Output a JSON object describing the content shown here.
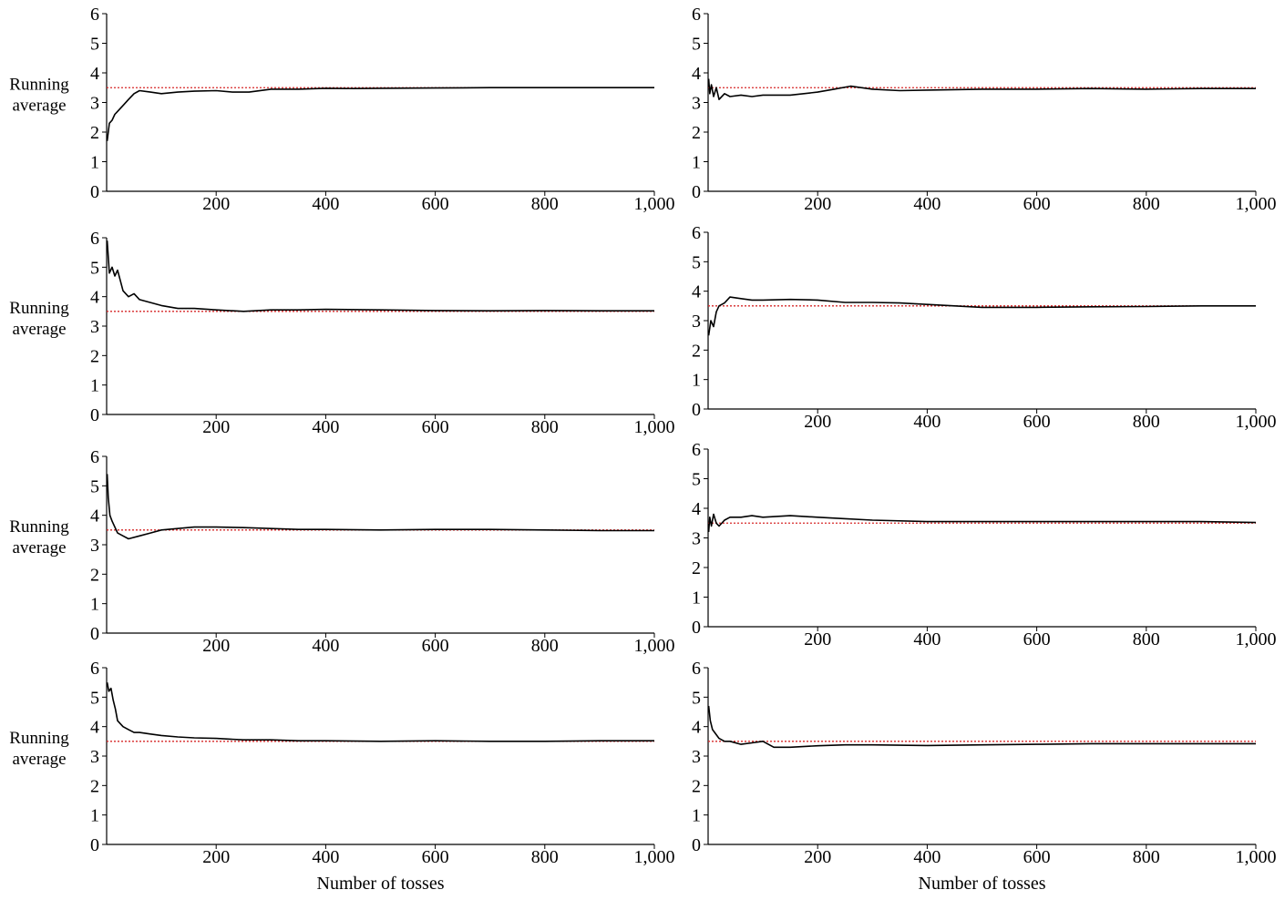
{
  "colors": {
    "series": "#000000",
    "reference": "#d62728",
    "axes": "#000000"
  },
  "chart_data": [
    {
      "type": "line",
      "ylabel": [
        "Running",
        "average"
      ],
      "xlabel": "",
      "xlim": [
        0,
        1000
      ],
      "ylim": [
        0,
        6
      ],
      "xticks": [
        "200",
        "400",
        "600",
        "800",
        "1,000"
      ],
      "xtick_values": [
        200,
        400,
        600,
        800,
        1000
      ],
      "yticks": [
        "0",
        "1",
        "2",
        "3",
        "4",
        "5",
        "6"
      ],
      "reference_line": 3.5,
      "reference_style": "dotted",
      "grid": false,
      "legend": "none",
      "series": [
        {
          "x": [
            1,
            5,
            10,
            15,
            20,
            30,
            40,
            50,
            60,
            80,
            100,
            130,
            160,
            200,
            230,
            260,
            300,
            350,
            400,
            450,
            500,
            600,
            700,
            800,
            900,
            1000
          ],
          "y": [
            1.7,
            2.3,
            2.4,
            2.6,
            2.7,
            2.9,
            3.1,
            3.3,
            3.4,
            3.35,
            3.3,
            3.35,
            3.38,
            3.4,
            3.35,
            3.35,
            3.45,
            3.45,
            3.48,
            3.47,
            3.48,
            3.49,
            3.5,
            3.5,
            3.5,
            3.5
          ]
        }
      ]
    },
    {
      "type": "line",
      "ylabel": [],
      "xlabel": "",
      "xlim": [
        0,
        1000
      ],
      "ylim": [
        0,
        6
      ],
      "xticks": [
        "200",
        "400",
        "600",
        "800",
        "1,000"
      ],
      "xtick_values": [
        200,
        400,
        600,
        800,
        1000
      ],
      "yticks": [
        "0",
        "1",
        "2",
        "3",
        "4",
        "5",
        "6"
      ],
      "reference_line": 3.5,
      "reference_style": "dotted",
      "grid": false,
      "legend": "none",
      "series": [
        {
          "x": [
            1,
            3,
            6,
            10,
            15,
            20,
            30,
            40,
            60,
            80,
            100,
            150,
            200,
            230,
            260,
            300,
            350,
            400,
            500,
            600,
            700,
            800,
            900,
            1000
          ],
          "y": [
            3.8,
            3.3,
            3.6,
            3.2,
            3.5,
            3.1,
            3.3,
            3.2,
            3.25,
            3.2,
            3.25,
            3.25,
            3.35,
            3.45,
            3.55,
            3.45,
            3.4,
            3.42,
            3.45,
            3.45,
            3.47,
            3.45,
            3.47,
            3.47
          ]
        }
      ]
    },
    {
      "type": "line",
      "ylabel": [
        "Running",
        "average"
      ],
      "xlabel": "",
      "xlim": [
        0,
        1000
      ],
      "ylim": [
        0,
        6
      ],
      "xticks": [
        "200",
        "400",
        "600",
        "800",
        "1,000"
      ],
      "xtick_values": [
        200,
        400,
        600,
        800,
        1000
      ],
      "yticks": [
        "0",
        "1",
        "2",
        "3",
        "4",
        "5",
        "6"
      ],
      "reference_line": 3.5,
      "reference_style": "dotted",
      "grid": false,
      "legend": "none",
      "series": [
        {
          "x": [
            1,
            5,
            10,
            15,
            20,
            30,
            40,
            50,
            60,
            80,
            100,
            130,
            160,
            200,
            250,
            300,
            350,
            400,
            500,
            600,
            700,
            800,
            900,
            1000
          ],
          "y": [
            5.9,
            4.8,
            5.0,
            4.7,
            4.9,
            4.2,
            4.0,
            4.1,
            3.9,
            3.8,
            3.7,
            3.6,
            3.6,
            3.55,
            3.5,
            3.55,
            3.55,
            3.57,
            3.55,
            3.53,
            3.52,
            3.53,
            3.52,
            3.52
          ]
        }
      ]
    },
    {
      "type": "line",
      "ylabel": [],
      "xlabel": "",
      "xlim": [
        0,
        1000
      ],
      "ylim": [
        0,
        6
      ],
      "xticks": [
        "200",
        "400",
        "600",
        "800",
        "1,000"
      ],
      "xtick_values": [
        200,
        400,
        600,
        800,
        1000
      ],
      "yticks": [
        "0",
        "1",
        "2",
        "3",
        "4",
        "5",
        "6"
      ],
      "reference_line": 3.5,
      "reference_style": "dotted",
      "grid": false,
      "legend": "none",
      "series": [
        {
          "x": [
            1,
            5,
            10,
            15,
            20,
            30,
            40,
            60,
            80,
            100,
            150,
            200,
            250,
            300,
            350,
            400,
            450,
            500,
            600,
            700,
            800,
            900,
            1000
          ],
          "y": [
            2.5,
            3.0,
            2.8,
            3.3,
            3.5,
            3.6,
            3.8,
            3.75,
            3.7,
            3.7,
            3.72,
            3.7,
            3.62,
            3.62,
            3.6,
            3.55,
            3.5,
            3.45,
            3.45,
            3.47,
            3.48,
            3.5,
            3.5
          ]
        }
      ]
    },
    {
      "type": "line",
      "ylabel": [
        "Running",
        "average"
      ],
      "xlabel": "",
      "xlim": [
        0,
        1000
      ],
      "ylim": [
        0,
        6
      ],
      "xticks": [
        "200",
        "400",
        "600",
        "800",
        "1,000"
      ],
      "xtick_values": [
        200,
        400,
        600,
        800,
        1000
      ],
      "yticks": [
        "0",
        "1",
        "2",
        "3",
        "4",
        "5",
        "6"
      ],
      "reference_line": 3.5,
      "reference_style": "dotted",
      "grid": false,
      "legend": "none",
      "series": [
        {
          "x": [
            1,
            3,
            6,
            10,
            15,
            20,
            30,
            40,
            60,
            80,
            100,
            130,
            160,
            200,
            250,
            300,
            350,
            400,
            500,
            600,
            700,
            800,
            900,
            1000
          ],
          "y": [
            5.4,
            4.6,
            4.0,
            3.8,
            3.6,
            3.4,
            3.3,
            3.2,
            3.3,
            3.4,
            3.5,
            3.55,
            3.6,
            3.6,
            3.58,
            3.55,
            3.52,
            3.52,
            3.5,
            3.52,
            3.52,
            3.5,
            3.48,
            3.48
          ]
        }
      ]
    },
    {
      "type": "line",
      "ylabel": [],
      "xlabel": "",
      "xlim": [
        0,
        1000
      ],
      "ylim": [
        0,
        6
      ],
      "xticks": [
        "200",
        "400",
        "600",
        "800",
        "1,000"
      ],
      "xtick_values": [
        200,
        400,
        600,
        800,
        1000
      ],
      "yticks": [
        "0",
        "1",
        "2",
        "3",
        "4",
        "5",
        "6"
      ],
      "reference_line": 3.5,
      "reference_style": "dotted",
      "grid": false,
      "legend": "none",
      "series": [
        {
          "x": [
            1,
            3,
            6,
            10,
            15,
            20,
            30,
            40,
            60,
            80,
            100,
            150,
            200,
            250,
            300,
            400,
            500,
            600,
            700,
            800,
            900,
            1000
          ],
          "y": [
            3.2,
            3.7,
            3.4,
            3.8,
            3.5,
            3.4,
            3.6,
            3.7,
            3.7,
            3.75,
            3.7,
            3.75,
            3.7,
            3.65,
            3.6,
            3.55,
            3.55,
            3.55,
            3.55,
            3.55,
            3.55,
            3.52
          ]
        }
      ]
    },
    {
      "type": "line",
      "ylabel": [
        "Running",
        "average"
      ],
      "xlabel": "Number of tosses",
      "xlim": [
        0,
        1000
      ],
      "ylim": [
        0,
        6
      ],
      "xticks": [
        "200",
        "400",
        "600",
        "800",
        "1,000"
      ],
      "xtick_values": [
        200,
        400,
        600,
        800,
        1000
      ],
      "yticks": [
        "0",
        "1",
        "2",
        "3",
        "4",
        "5",
        "6"
      ],
      "reference_line": 3.5,
      "reference_style": "dotted",
      "grid": false,
      "legend": "none",
      "series": [
        {
          "x": [
            1,
            4,
            8,
            12,
            16,
            20,
            30,
            40,
            50,
            60,
            80,
            100,
            130,
            160,
            200,
            250,
            300,
            350,
            400,
            500,
            600,
            700,
            800,
            900,
            1000
          ],
          "y": [
            5.5,
            5.2,
            5.3,
            4.9,
            4.6,
            4.2,
            4.0,
            3.9,
            3.8,
            3.8,
            3.75,
            3.7,
            3.65,
            3.62,
            3.6,
            3.55,
            3.55,
            3.52,
            3.52,
            3.5,
            3.52,
            3.5,
            3.5,
            3.52,
            3.52
          ]
        }
      ]
    },
    {
      "type": "line",
      "ylabel": [],
      "xlabel": "Number of tosses",
      "xlim": [
        0,
        1000
      ],
      "ylim": [
        0,
        6
      ],
      "xticks": [
        "200",
        "400",
        "600",
        "800",
        "1,000"
      ],
      "xtick_values": [
        200,
        400,
        600,
        800,
        1000
      ],
      "yticks": [
        "0",
        "1",
        "2",
        "3",
        "4",
        "5",
        "6"
      ],
      "reference_line": 3.5,
      "reference_style": "dotted",
      "grid": false,
      "legend": "none",
      "series": [
        {
          "x": [
            1,
            4,
            8,
            12,
            16,
            20,
            30,
            40,
            60,
            80,
            100,
            120,
            150,
            200,
            250,
            300,
            400,
            500,
            600,
            700,
            800,
            900,
            1000
          ],
          "y": [
            4.7,
            4.2,
            3.9,
            3.8,
            3.7,
            3.6,
            3.5,
            3.5,
            3.4,
            3.45,
            3.5,
            3.3,
            3.3,
            3.35,
            3.38,
            3.38,
            3.36,
            3.38,
            3.4,
            3.42,
            3.42,
            3.42,
            3.42
          ]
        }
      ]
    }
  ]
}
